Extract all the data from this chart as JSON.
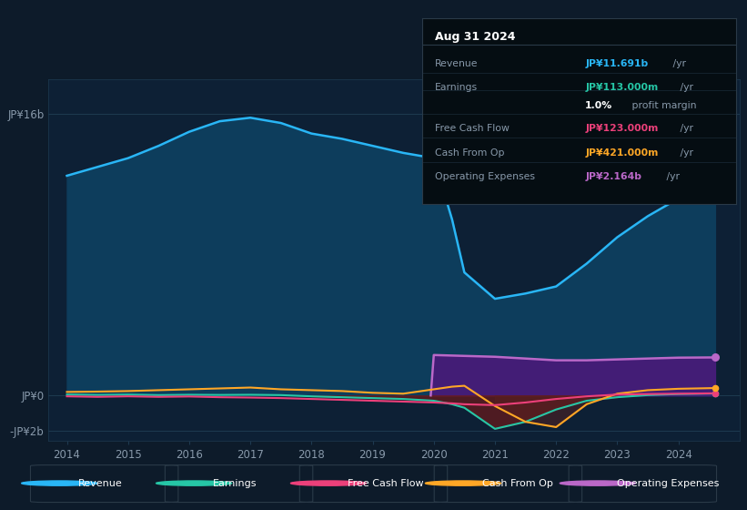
{
  "bg_color": "#0d1b2a",
  "plot_bg_color": "#0d2035",
  "years": [
    2014,
    2014.5,
    2015,
    2015.5,
    2016,
    2016.5,
    2017,
    2017.5,
    2018,
    2018.5,
    2019,
    2019.5,
    2020,
    2020.3,
    2020.5,
    2021,
    2021.5,
    2022,
    2022.5,
    2023,
    2023.5,
    2024,
    2024.6
  ],
  "revenue": [
    12.5,
    13.0,
    13.5,
    14.2,
    15.0,
    15.6,
    15.8,
    15.5,
    14.9,
    14.6,
    14.2,
    13.8,
    13.5,
    10.0,
    7.0,
    5.5,
    5.8,
    6.2,
    7.5,
    9.0,
    10.2,
    11.2,
    11.691
  ],
  "earnings": [
    0.05,
    0.03,
    0.05,
    0.02,
    0.04,
    0.03,
    0.04,
    0.02,
    -0.05,
    -0.1,
    -0.15,
    -0.2,
    -0.3,
    -0.5,
    -0.7,
    -1.9,
    -1.5,
    -0.8,
    -0.3,
    -0.1,
    0.02,
    0.08,
    0.113
  ],
  "free_cash_flow": [
    -0.05,
    -0.08,
    -0.05,
    -0.08,
    -0.06,
    -0.1,
    -0.12,
    -0.15,
    -0.2,
    -0.25,
    -0.3,
    -0.35,
    -0.4,
    -0.45,
    -0.5,
    -0.55,
    -0.4,
    -0.2,
    -0.05,
    0.05,
    0.08,
    0.1,
    0.123
  ],
  "cash_from_op": [
    0.2,
    0.22,
    0.25,
    0.3,
    0.35,
    0.4,
    0.45,
    0.35,
    0.3,
    0.25,
    0.15,
    0.1,
    0.35,
    0.5,
    0.55,
    -0.6,
    -1.5,
    -1.8,
    -0.5,
    0.1,
    0.3,
    0.38,
    0.421
  ],
  "op_exp_years": [
    2019.95,
    2020,
    2020.5,
    2021,
    2021.5,
    2022,
    2022.5,
    2023,
    2023.5,
    2024,
    2024.6
  ],
  "op_expenses": [
    0.0,
    2.3,
    2.25,
    2.2,
    2.1,
    2.0,
    2.0,
    2.05,
    2.1,
    2.15,
    2.164
  ],
  "ylim": [
    -2.6,
    18.0
  ],
  "ytick_vals": [
    -2,
    0,
    16
  ],
  "ytick_labels": [
    "-JP¥2b",
    "JP¥0",
    "JP¥16b"
  ],
  "xtick_years": [
    2014,
    2015,
    2016,
    2017,
    2018,
    2019,
    2020,
    2021,
    2022,
    2023,
    2024
  ],
  "xlim": [
    2013.7,
    2025.0
  ],
  "revenue_color": "#29b6f6",
  "revenue_fill": "#0d3d5c",
  "earnings_color": "#26c6a6",
  "fcf_color": "#ec407a",
  "cfop_color": "#ffa726",
  "op_exp_color": "#ba68c8",
  "op_exp_fill": "#4a1a7a",
  "earnings_neg_fill": "#6b1a1a",
  "cfop_neg_fill": "#5a2020",
  "grid_color": "#1e3a50",
  "text_color": "#8899aa",
  "axis_color": "#8899aa",
  "legend_items": [
    "Revenue",
    "Earnings",
    "Free Cash Flow",
    "Cash From Op",
    "Operating Expenses"
  ],
  "legend_colors": [
    "#29b6f6",
    "#26c6a6",
    "#ec407a",
    "#ffa726",
    "#ba68c8"
  ],
  "infobox": {
    "date": "Aug 31 2024",
    "rows": [
      {
        "label": "Revenue",
        "value": "JP¥11.691b",
        "vcolor": "#29b6f6",
        "unit": " /yr"
      },
      {
        "label": "Earnings",
        "value": "JP¥113.000m",
        "vcolor": "#26c6a6",
        "unit": " /yr"
      },
      {
        "label": "",
        "value": "1.0%",
        "vcolor": "#ffffff",
        "unit": " profit margin"
      },
      {
        "label": "Free Cash Flow",
        "value": "JP¥123.000m",
        "vcolor": "#ec407a",
        "unit": " /yr"
      },
      {
        "label": "Cash From Op",
        "value": "JP¥421.000m",
        "vcolor": "#ffa726",
        "unit": " /yr"
      },
      {
        "label": "Operating Expenses",
        "value": "JP¥2.164b",
        "vcolor": "#ba68c8",
        "unit": " /yr"
      }
    ]
  }
}
